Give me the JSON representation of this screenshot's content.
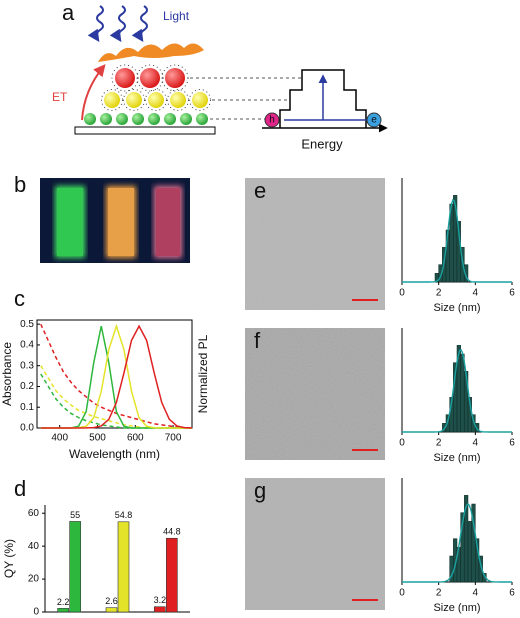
{
  "panel_labels": [
    "a",
    "b",
    "c",
    "d",
    "e",
    "f",
    "g"
  ],
  "diagram": {
    "light": "Light",
    "et": "ET",
    "energy": "Energy",
    "hole": "h",
    "electron": "e"
  },
  "chart_data": [
    {
      "type": "line",
      "x_label": "Wavelength (nm)",
      "y_label": "Absorbance",
      "y2_label": "Normalized PL",
      "x": [
        350,
        370,
        390,
        410,
        430,
        450,
        470,
        490,
        510,
        530,
        550,
        570,
        590,
        610,
        630,
        650,
        670,
        690,
        710,
        730,
        750
      ],
      "xlim": [
        340,
        750
      ],
      "xticks": [
        400,
        500,
        600,
        700
      ],
      "ylim": [
        0,
        0.52
      ],
      "yticks": [
        {
          "value": 0,
          "label": "0.0"
        },
        0.1,
        0.2,
        0.3,
        0.4,
        0.5
      ],
      "y2lim": [
        0,
        1.06
      ],
      "series": [
        {
          "color": "#2db83d",
          "dashed": true,
          "values": [
            0.26,
            0.2,
            0.14,
            0.1,
            0.07,
            0.05,
            0.035,
            0.025,
            0.015,
            0.01,
            0.005,
            0,
            0,
            0,
            0,
            0,
            0,
            0,
            0,
            0,
            0
          ]
        },
        {
          "color": "#e3e32a",
          "dashed": true,
          "values": [
            0.3,
            0.24,
            0.18,
            0.14,
            0.11,
            0.085,
            0.07,
            0.055,
            0.045,
            0.035,
            0.025,
            0.015,
            0.01,
            0.005,
            0,
            0,
            0,
            0,
            0,
            0,
            0
          ]
        },
        {
          "color": "#e02020",
          "dashed": true,
          "values": [
            0.5,
            0.42,
            0.34,
            0.27,
            0.22,
            0.18,
            0.15,
            0.12,
            0.1,
            0.085,
            0.07,
            0.06,
            0.05,
            0.04,
            0.03,
            0.02,
            0.015,
            0.01,
            0.005,
            0,
            0
          ]
        },
        {
          "color": "#2db83d",
          "axis": "y2",
          "values": [
            0,
            0,
            0,
            0,
            0,
            0.017,
            0.16,
            0.64,
            1,
            0.64,
            0.16,
            0.017,
            0,
            0,
            0,
            0,
            0,
            0,
            0,
            0,
            0
          ]
        },
        {
          "color": "#e3e32a",
          "axis": "y2",
          "values": [
            0,
            0,
            0,
            0,
            0,
            0.002,
            0.017,
            0.1,
            0.36,
            0.77,
            1,
            0.77,
            0.36,
            0.1,
            0.017,
            0.002,
            0,
            0,
            0,
            0,
            0
          ]
        },
        {
          "color": "#e02020",
          "axis": "y2",
          "values": [
            0,
            0,
            0,
            0,
            0,
            0,
            0.001,
            0.004,
            0.02,
            0.085,
            0.25,
            0.54,
            0.86,
            1,
            0.86,
            0.54,
            0.25,
            0.085,
            0.02,
            0.004,
            0.001
          ]
        }
      ]
    },
    {
      "type": "bar",
      "y_label": "QY (%)",
      "categories": [
        null,
        null,
        null
      ],
      "ylim": [
        0,
        65
      ],
      "yticks": [
        0,
        20,
        40,
        60
      ],
      "series": [
        {
          "colors": [
            "#2db83d",
            "#e3e32a",
            "#e02020"
          ],
          "values": [
            2.2,
            2.6,
            3.2
          ]
        },
        {
          "colors": [
            "#2db83d",
            "#e3e32a",
            "#e02020"
          ],
          "values": [
            55,
            54.8,
            44.8
          ]
        }
      ]
    },
    {
      "type": "histogram",
      "x_label": "Size (nm)",
      "bins": [
        1.8,
        2.0,
        2.2,
        2.4,
        2.6,
        2.8,
        3.0,
        3.2,
        3.4,
        3.6
      ],
      "values": [
        1,
        2,
        4,
        6,
        9,
        10,
        7,
        4,
        2
      ],
      "color": "#1f4f49",
      "fit": {
        "mean": 2.8,
        "sd": 0.3,
        "peak": 9.5,
        "color": "#1aa0a0"
      },
      "xlim": [
        0,
        6
      ],
      "xticks": [
        0,
        2,
        4,
        6
      ],
      "ylim": [
        0,
        12
      ]
    },
    {
      "type": "histogram",
      "x_label": "Size (nm)",
      "bins": [
        2.2,
        2.4,
        2.6,
        2.8,
        3.0,
        3.2,
        3.4,
        3.6,
        3.8,
        4.0,
        4.2
      ],
      "values": [
        1,
        2,
        4,
        8,
        10,
        9,
        7,
        4,
        2,
        1
      ],
      "color": "#1f4f49",
      "fit": {
        "mean": 3.2,
        "sd": 0.35,
        "peak": 9.5,
        "color": "#1aa0a0"
      },
      "xlim": [
        0,
        6
      ],
      "xticks": [
        0,
        2,
        4,
        6
      ],
      "ylim": [
        0,
        12
      ]
    },
    {
      "type": "histogram",
      "x_label": "Size (nm)",
      "bins": [
        2.6,
        2.8,
        3.0,
        3.2,
        3.4,
        3.6,
        3.8,
        4.0,
        4.2,
        4.4,
        4.6
      ],
      "values": [
        3,
        5,
        4,
        8,
        10,
        7,
        9,
        5,
        3,
        1
      ],
      "color": "#1f4f49",
      "fit": {
        "mean": 3.6,
        "sd": 0.4,
        "peak": 9,
        "color": "#1aa0a0"
      },
      "xlim": [
        0,
        6
      ],
      "xticks": [
        0,
        2,
        4,
        6
      ],
      "ylim": [
        0,
        12
      ]
    }
  ]
}
